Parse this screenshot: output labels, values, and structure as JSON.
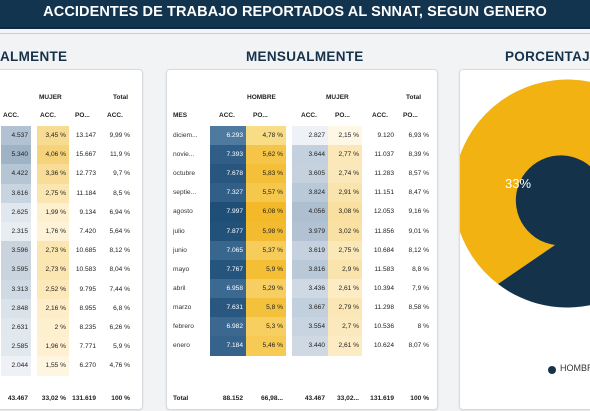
{
  "header": {
    "title": "ACCIDENTES DE TRABAJO REPORTADOS AL SNNAT, SEGUN GENERO"
  },
  "sections": {
    "left_title": "ALMENTE",
    "middle_title": "MENSUALMENTE",
    "right_title": "PORCENTAJE"
  },
  "left_table": {
    "group_mujer": "MUJER",
    "col_total": "Total",
    "cols": [
      "ACC.",
      "ACC.",
      "PO...",
      "ACC."
    ],
    "rows": [
      [
        "4.537",
        "3,45 %",
        "13.147",
        "9,99 %"
      ],
      [
        "5.340",
        "4,06 %",
        "15.667",
        "11,9 %"
      ],
      [
        "4.422",
        "3,36 %",
        "12.773",
        "9,7 %"
      ],
      [
        "3.616",
        "2,75 %",
        "11.184",
        "8,5 %"
      ],
      [
        "2.625",
        "1,99 %",
        "9.134",
        "6,94 %"
      ],
      [
        "2.315",
        "1,76 %",
        "7.420",
        "5,64 %"
      ],
      [
        "3.596",
        "2,73 %",
        "10.685",
        "8,12 %"
      ],
      [
        "3.595",
        "2,73 %",
        "10.583",
        "8,04 %"
      ],
      [
        "3.313",
        "2,52 %",
        "9.795",
        "7,44 %"
      ],
      [
        "2.848",
        "2,16 %",
        "8.955",
        "6,8 %"
      ],
      [
        "2.631",
        "2 %",
        "8.235",
        "6,26 %"
      ],
      [
        "2.585",
        "1,96 %",
        "7.771",
        "5,9 %"
      ],
      [
        "2.044",
        "1,55 %",
        "6.270",
        "4,76 %"
      ]
    ],
    "total": [
      "43.467",
      "33,02 %",
      "131.619",
      "100 %"
    ]
  },
  "middle_table": {
    "group_hombre": "HOMBRE",
    "group_mujer": "MUJER",
    "col_total": "Total",
    "cols": [
      "MES",
      "ACC.",
      "PO...",
      "ACC.",
      "PO...",
      "ACC.",
      "PO..."
    ],
    "rows": [
      [
        "diciem...",
        "6.293",
        "4,78 %",
        "2.827",
        "2,15 %",
        "9.120",
        "6,93 %"
      ],
      [
        "novie...",
        "7.393",
        "5,62 %",
        "3.644",
        "2,77 %",
        "11.037",
        "8,39 %"
      ],
      [
        "octubre",
        "7.678",
        "5,83 %",
        "3.605",
        "2,74 %",
        "11.283",
        "8,57 %"
      ],
      [
        "septie...",
        "7.327",
        "5,57 %",
        "3.824",
        "2,91 %",
        "11.151",
        "8,47 %"
      ],
      [
        "agosto",
        "7.997",
        "6,08 %",
        "4.056",
        "3,08 %",
        "12.053",
        "9,16 %"
      ],
      [
        "julio",
        "7.877",
        "5,98 %",
        "3.979",
        "3,02 %",
        "11.856",
        "9,01 %"
      ],
      [
        "junio",
        "7.065",
        "5,37 %",
        "3.619",
        "2,75 %",
        "10.684",
        "8,12 %"
      ],
      [
        "mayo",
        "7.767",
        "5,9 %",
        "3.816",
        "2,9 %",
        "11.583",
        "8,8 %"
      ],
      [
        "abril",
        "6.958",
        "5,29 %",
        "3.436",
        "2,61 %",
        "10.394",
        "7,9 %"
      ],
      [
        "marzo",
        "7.631",
        "5,8 %",
        "3.667",
        "2,79 %",
        "11.298",
        "8,58 %"
      ],
      [
        "febrero",
        "6.982",
        "5,3 %",
        "3.554",
        "2,7 %",
        "10.536",
        "8 %"
      ],
      [
        "enero",
        "7.184",
        "5,46 %",
        "3.440",
        "2,61 %",
        "10.624",
        "8,07 %"
      ]
    ],
    "total": [
      "Total",
      "88.152",
      "66,98...",
      "43.467",
      "33,02...",
      "131.619",
      "100 %"
    ]
  },
  "donut": {
    "label": "33%",
    "legend": "HOMBR",
    "colors": {
      "hombre": "#15324b",
      "mujer": "#f2b211"
    }
  },
  "colors": {
    "blue_cell": "#2c5f8a",
    "gold_cell": "#f6c243",
    "header": "#13344f"
  }
}
